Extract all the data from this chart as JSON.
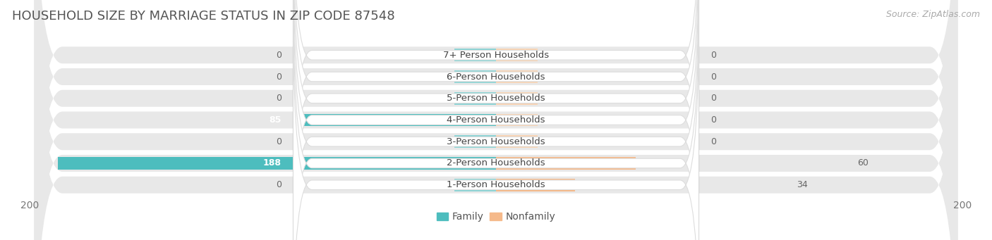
{
  "title": "Household Size by Marriage Status in Zip Code 87548",
  "title_display": "HOUSEHOLD SIZE BY MARRIAGE STATUS IN ZIP CODE 87548",
  "source": "Source: ZipAtlas.com",
  "categories": [
    "7+ Person Households",
    "6-Person Households",
    "5-Person Households",
    "4-Person Households",
    "3-Person Households",
    "2-Person Households",
    "1-Person Households"
  ],
  "family_values": [
    0,
    0,
    0,
    85,
    0,
    188,
    0
  ],
  "nonfamily_values": [
    0,
    0,
    0,
    0,
    0,
    60,
    34
  ],
  "family_color": "#4dbdbe",
  "family_color_light": "#8dd4d5",
  "nonfamily_color": "#f5b98a",
  "nonfamily_color_light": "#f8d4b4",
  "xlim": 200,
  "min_stub": 18,
  "bar_height": 0.58,
  "bg_color": "#ffffff",
  "row_bg_color": "#e8e8e8",
  "label_bg_color": "#ffffff",
  "title_fontsize": 13,
  "source_fontsize": 9,
  "tick_fontsize": 10,
  "label_fontsize": 9.5,
  "value_fontsize": 9
}
